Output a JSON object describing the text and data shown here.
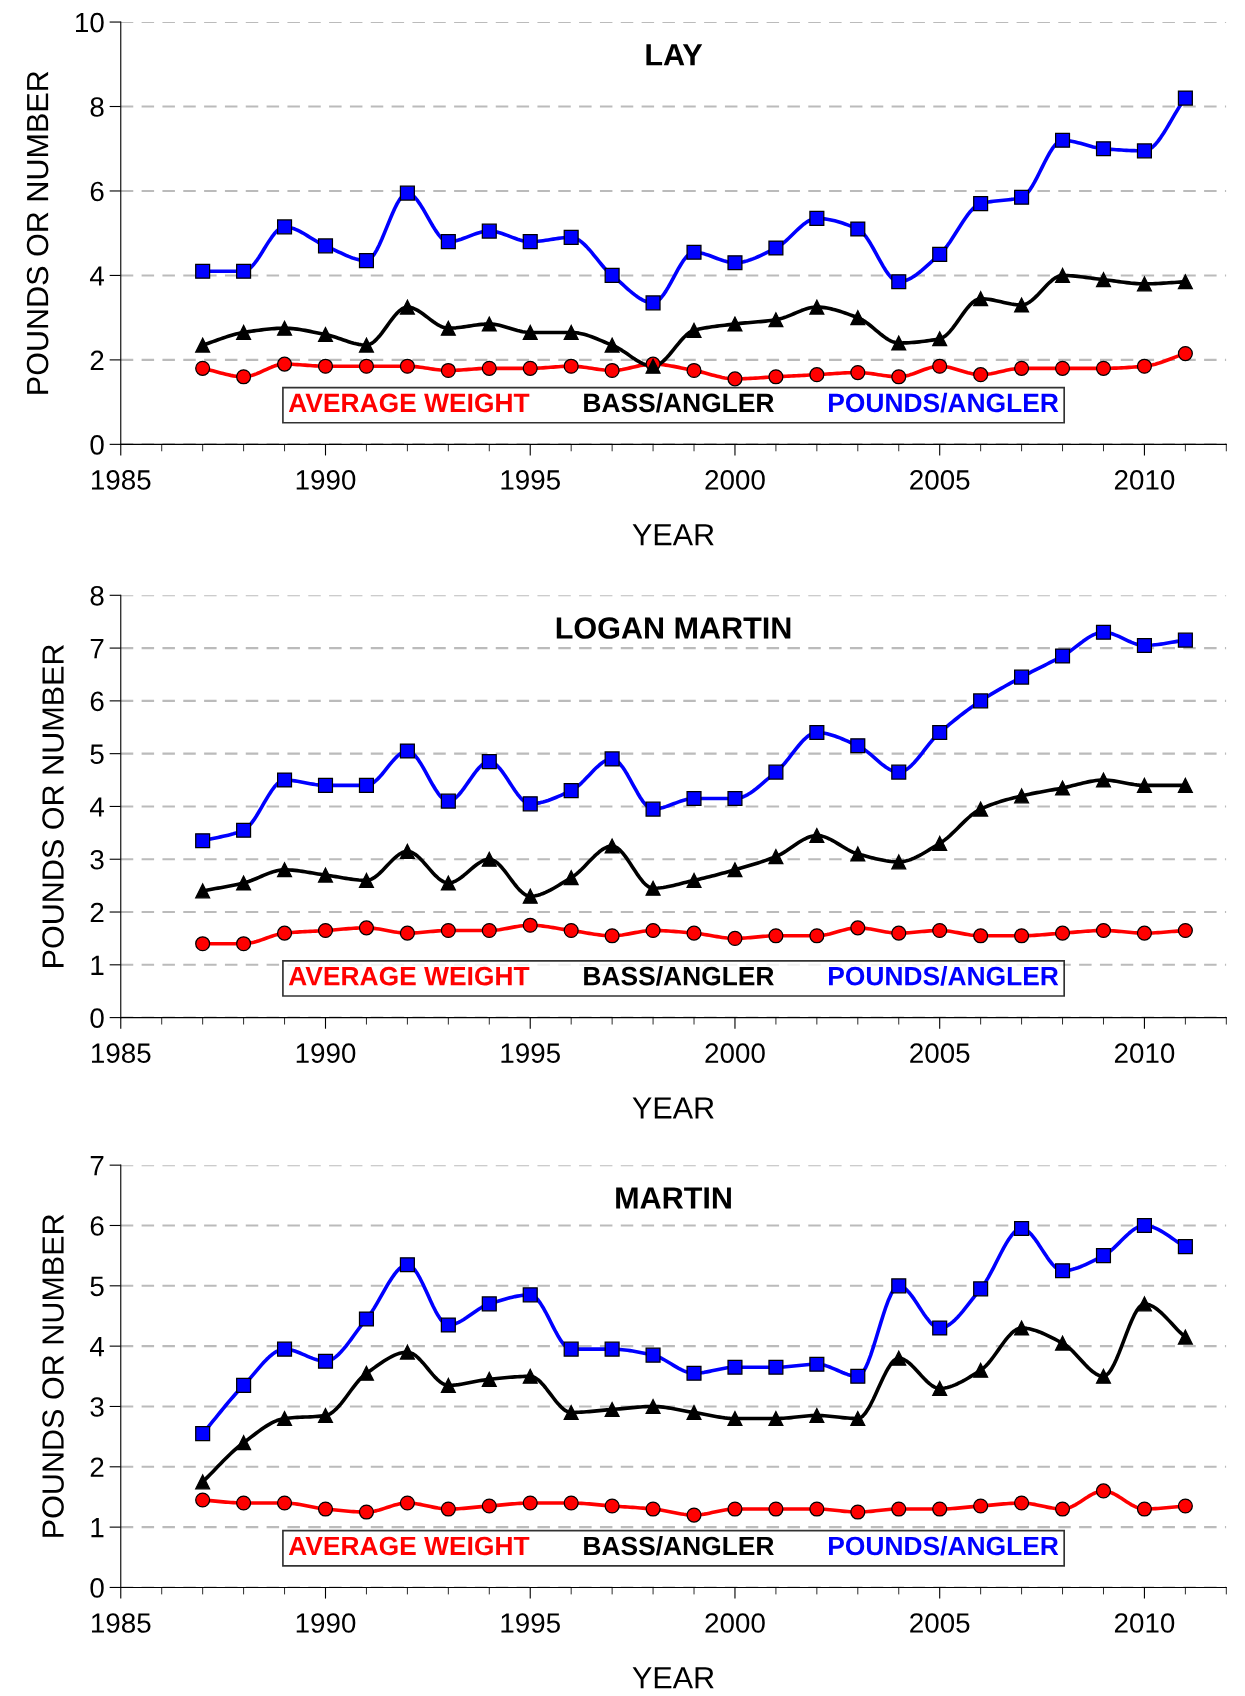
{
  "chart_data": [
    {
      "type": "line",
      "title": "LAY",
      "xlabel": "YEAR",
      "ylabel": "POUNDS OR NUMBER",
      "xlim": [
        1985,
        2012
      ],
      "xticks": [
        1985,
        1990,
        1995,
        2000,
        2005,
        2010
      ],
      "ylim": [
        0,
        10
      ],
      "yticks": [
        0,
        2,
        4,
        6,
        8,
        10
      ],
      "grid": "y",
      "legend": "bottom",
      "line_style": "solid",
      "x": [
        1987,
        1988,
        1989,
        1990,
        1991,
        1992,
        1993,
        1994,
        1995,
        1996,
        1997,
        1998,
        1999,
        2000,
        2001,
        2002,
        2003,
        2004,
        2005,
        2006,
        2007,
        2008,
        2009,
        2010,
        2011
      ],
      "series": [
        {
          "name": "AVERAGE WEIGHT",
          "color": "#ff0000",
          "marker": "circle",
          "values": [
            1.8,
            1.6,
            1.9,
            1.85,
            1.85,
            1.85,
            1.75,
            1.8,
            1.8,
            1.85,
            1.75,
            1.9,
            1.75,
            1.55,
            1.6,
            1.65,
            1.7,
            1.6,
            1.85,
            1.65,
            1.8,
            1.8,
            1.8,
            1.85,
            2.15
          ]
        },
        {
          "name": "BASS/ANGLER",
          "color": "#000000",
          "marker": "triangle",
          "values": [
            2.35,
            2.65,
            2.75,
            2.6,
            2.35,
            3.25,
            2.75,
            2.85,
            2.65,
            2.65,
            2.35,
            1.85,
            2.7,
            2.85,
            2.95,
            3.25,
            3.0,
            2.4,
            2.5,
            3.45,
            3.3,
            4.0,
            3.9,
            3.8,
            3.85
          ]
        },
        {
          "name": "POUNDS/ANGLER",
          "color": "#0000ff",
          "marker": "square",
          "values": [
            4.1,
            4.1,
            5.15,
            4.7,
            4.35,
            5.95,
            4.8,
            5.05,
            4.8,
            4.9,
            4.0,
            3.35,
            4.55,
            4.3,
            4.65,
            5.35,
            5.1,
            3.85,
            4.5,
            5.7,
            5.85,
            7.2,
            7.0,
            6.95,
            8.2
          ]
        }
      ]
    },
    {
      "type": "line",
      "title": "LOGAN MARTIN",
      "xlabel": "YEAR",
      "ylabel": "POUNDS OR NUMBER",
      "xlim": [
        1985,
        2012
      ],
      "xticks": [
        1985,
        1990,
        1995,
        2000,
        2005,
        2010
      ],
      "ylim": [
        0,
        8
      ],
      "yticks": [
        0,
        1,
        2,
        3,
        4,
        5,
        6,
        7,
        8
      ],
      "grid": "y",
      "legend": "bottom",
      "line_style": "solid",
      "x": [
        1987,
        1988,
        1989,
        1990,
        1991,
        1992,
        1993,
        1994,
        1995,
        1996,
        1997,
        1998,
        1999,
        2000,
        2001,
        2002,
        2003,
        2004,
        2005,
        2006,
        2007,
        2008,
        2009,
        2010,
        2011
      ],
      "series": [
        {
          "name": "AVERAGE WEIGHT",
          "color": "#ff0000",
          "marker": "circle",
          "values": [
            1.4,
            1.4,
            1.6,
            1.65,
            1.7,
            1.6,
            1.65,
            1.65,
            1.75,
            1.65,
            1.55,
            1.65,
            1.6,
            1.5,
            1.55,
            1.55,
            1.7,
            1.6,
            1.65,
            1.55,
            1.55,
            1.6,
            1.65,
            1.6,
            1.65
          ]
        },
        {
          "name": "BASS/ANGLER",
          "color": "#000000",
          "marker": "triangle",
          "values": [
            2.4,
            2.55,
            2.8,
            2.7,
            2.6,
            3.15,
            2.55,
            3.0,
            2.3,
            2.65,
            3.25,
            2.45,
            2.6,
            2.8,
            3.05,
            3.45,
            3.1,
            2.95,
            3.3,
            3.95,
            4.2,
            4.35,
            4.5,
            4.4,
            4.4
          ]
        },
        {
          "name": "POUNDS/ANGLER",
          "color": "#0000ff",
          "marker": "square",
          "values": [
            3.35,
            3.55,
            4.5,
            4.4,
            4.4,
            5.05,
            4.1,
            4.85,
            4.05,
            4.3,
            4.9,
            3.95,
            4.15,
            4.15,
            4.65,
            5.4,
            5.15,
            4.65,
            5.4,
            6.0,
            6.45,
            6.85,
            7.3,
            7.05,
            7.15
          ]
        }
      ]
    },
    {
      "type": "line",
      "title": "MARTIN",
      "xlabel": "YEAR",
      "ylabel": "POUNDS OR NUMBER",
      "xlim": [
        1985,
        2012
      ],
      "xticks": [
        1985,
        1990,
        1995,
        2000,
        2005,
        2010
      ],
      "ylim": [
        0,
        7
      ],
      "yticks": [
        0,
        1,
        2,
        3,
        4,
        5,
        6,
        7
      ],
      "grid": "y",
      "legend": "bottom",
      "line_style": "solid",
      "x": [
        1987,
        1988,
        1989,
        1990,
        1991,
        1992,
        1993,
        1994,
        1995,
        1996,
        1997,
        1998,
        1999,
        2000,
        2001,
        2002,
        2003,
        2004,
        2005,
        2006,
        2007,
        2008,
        2009,
        2010,
        2011
      ],
      "series": [
        {
          "name": "AVERAGE WEIGHT",
          "color": "#ff0000",
          "marker": "circle",
          "values": [
            1.45,
            1.4,
            1.4,
            1.3,
            1.25,
            1.4,
            1.3,
            1.35,
            1.4,
            1.4,
            1.35,
            1.3,
            1.2,
            1.3,
            1.3,
            1.3,
            1.25,
            1.3,
            1.3,
            1.35,
            1.4,
            1.3,
            1.6,
            1.3,
            1.35
          ]
        },
        {
          "name": "BASS/ANGLER",
          "color": "#000000",
          "marker": "triangle",
          "values": [
            1.75,
            2.4,
            2.8,
            2.85,
            3.55,
            3.9,
            3.35,
            3.45,
            3.5,
            2.9,
            2.95,
            3.0,
            2.9,
            2.8,
            2.8,
            2.85,
            2.8,
            3.8,
            3.3,
            3.6,
            4.3,
            4.05,
            3.5,
            4.7,
            4.15
          ]
        },
        {
          "name": "POUNDS/ANGLER",
          "color": "#0000ff",
          "marker": "square",
          "values": [
            2.55,
            3.35,
            3.95,
            3.75,
            4.45,
            5.35,
            4.35,
            4.7,
            4.85,
            3.95,
            3.95,
            3.85,
            3.55,
            3.65,
            3.65,
            3.7,
            3.5,
            5.0,
            4.3,
            4.95,
            5.95,
            5.25,
            5.5,
            6.0,
            5.65
          ]
        }
      ]
    }
  ]
}
